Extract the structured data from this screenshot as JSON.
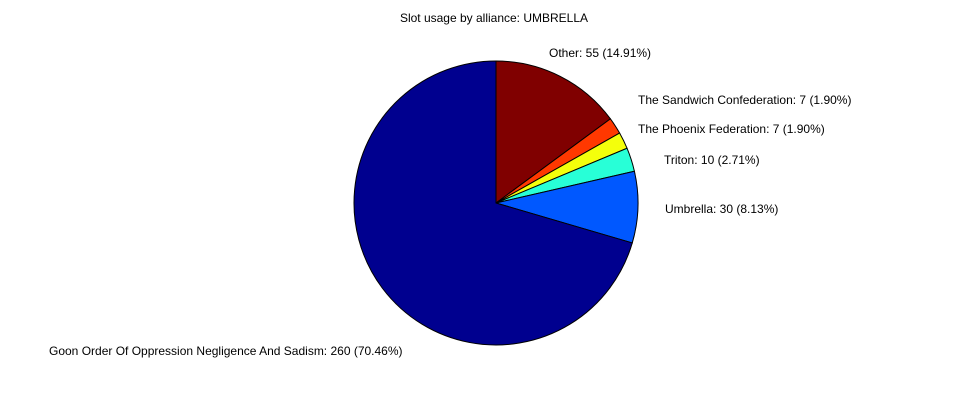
{
  "chart_data": {
    "type": "pie",
    "title": "Slot usage by alliance: UMBRELLA",
    "slices": [
      {
        "label": "Other: 55 (14.91%)",
        "name": "Other",
        "value": 55,
        "percent": 14.91,
        "color": "#800000"
      },
      {
        "label": "The Sandwich Confederation: 7 (1.90%)",
        "name": "The Sandwich Confederation",
        "value": 7,
        "percent": 1.9,
        "color": "#ff3800"
      },
      {
        "label": "The Phoenix Federation: 7 (1.90%)",
        "name": "The Phoenix Federation",
        "value": 7,
        "percent": 1.9,
        "color": "#f4ff0b"
      },
      {
        "label": "Triton: 10 (2.71%)",
        "name": "Triton",
        "value": 10,
        "percent": 2.71,
        "color": "#28ffd7"
      },
      {
        "label": "Umbrella: 30 (8.13%)",
        "name": "Umbrella",
        "value": 30,
        "percent": 8.13,
        "color": "#0058ff"
      },
      {
        "label": "Goon Order Of Oppression Negligence And Sadism: 260 (70.46%)",
        "name": "Goon Order Of Oppression Negligence And Sadism",
        "value": 260,
        "percent": 70.46,
        "color": "#00008f"
      }
    ],
    "start_direction": "top",
    "direction": "clockwise"
  }
}
